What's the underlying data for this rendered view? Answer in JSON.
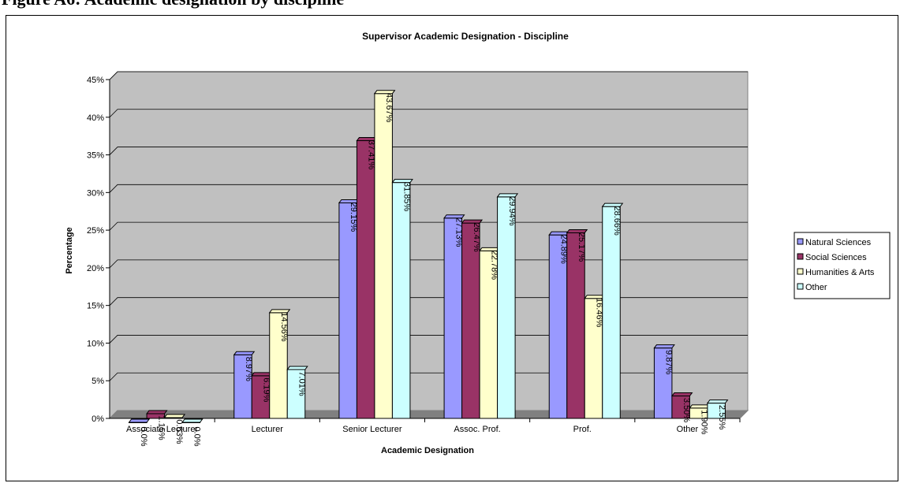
{
  "figure_caption": "Figure A6: Academic designation by discipline",
  "chart_data": {
    "type": "bar",
    "title": "Supervisor Academic Designation - Discipline",
    "xlabel": "Academic Designation",
    "ylabel": "Percentage",
    "ylim": [
      0,
      45
    ],
    "y_ticks": [
      "0%",
      "5%",
      "10%",
      "15%",
      "20%",
      "25%",
      "30%",
      "35%",
      "40%",
      "45%"
    ],
    "grid": true,
    "legend_position": "right",
    "categories": [
      "Associate Lecturer",
      "Lecturer",
      "Senior Lecturer",
      "Assoc. Prof.",
      "Prof.",
      "Other"
    ],
    "series": [
      {
        "name": "Natural Sciences",
        "color": "#9999ff",
        "values": [
          0.0,
          8.97,
          29.15,
          27.13,
          24.89,
          9.87
        ],
        "labels": [
          "0.0%",
          "8.97%",
          "29.15%",
          "27.13%",
          "24.89%",
          "9.87%"
        ]
      },
      {
        "name": "Social Sciences",
        "color": "#993366",
        "values": [
          1.15,
          6.19,
          37.41,
          26.47,
          25.17,
          3.5
        ],
        "labels": [
          "1.15%",
          "6.19%",
          "37.41%",
          "26.47%",
          "25.17%",
          "3.50%"
        ]
      },
      {
        "name": "Humanities & Arts",
        "color": "#ffffcc",
        "values": [
          0.63,
          14.56,
          43.67,
          22.78,
          16.46,
          1.9
        ],
        "labels": [
          "0.63%",
          "14.56%",
          "43.67%",
          "22.78%",
          "16.46%",
          "1.90%"
        ]
      },
      {
        "name": "Other",
        "color": "#ccffff",
        "values": [
          0.0,
          7.01,
          31.85,
          29.94,
          28.66,
          2.55
        ],
        "labels": [
          "0.0%",
          "7.01%",
          "31.85%",
          "29.94%",
          "28.66%",
          "2.55%"
        ]
      }
    ]
  }
}
